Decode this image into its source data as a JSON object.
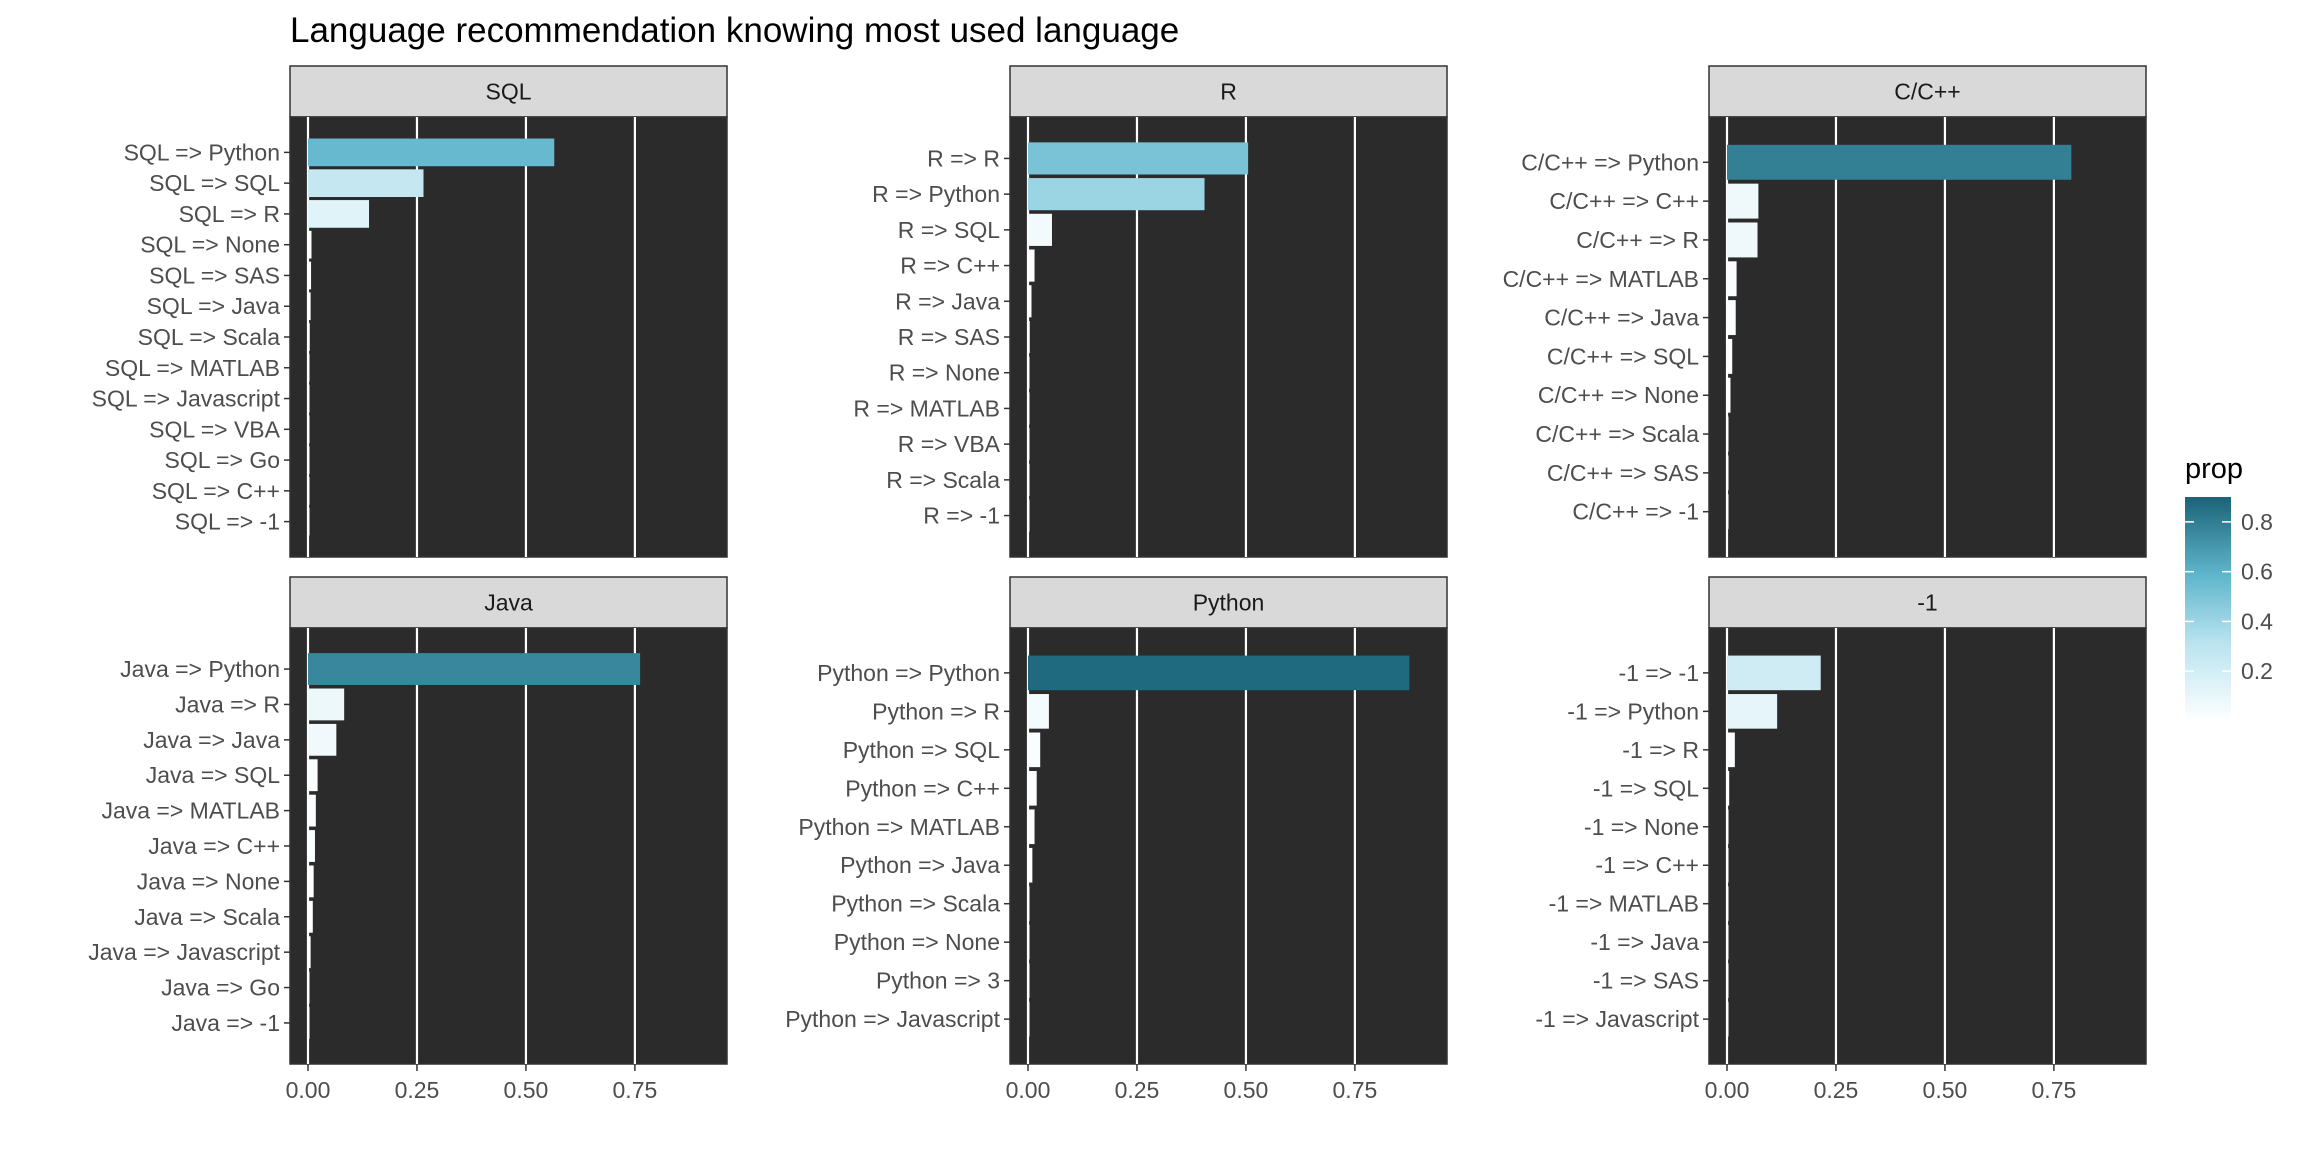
{
  "title": "Language recommendation knowing most used language",
  "legend": {
    "title": "prop",
    "ticks": [
      "0.2",
      "0.4",
      "0.6",
      "0.8"
    ],
    "low_color": "#ffffff",
    "high_color": "#1b6378",
    "range": [
      0.0,
      0.9
    ],
    "placement": "right"
  },
  "chart_data": [
    {
      "type": "bar",
      "orientation": "horizontal",
      "facet": "SQL",
      "categories": [
        "SQL => Python",
        "SQL => SQL",
        "SQL => R",
        "SQL => None",
        "SQL => SAS",
        "SQL => Java",
        "SQL => Scala",
        "SQL => MATLAB",
        "SQL => Javascript",
        "SQL => VBA",
        "SQL => Go",
        "SQL => C++",
        "SQL => -1"
      ],
      "values": [
        0.565,
        0.265,
        0.14,
        0.008,
        0.007,
        0.006,
        0.004,
        0.003,
        0.003,
        0.002,
        0.002,
        0.002,
        0.001
      ],
      "xlim": [
        0,
        0.92
      ],
      "xticks": [
        "0.00",
        "0.25",
        "0.50",
        "0.75"
      ],
      "grid": true
    },
    {
      "type": "bar",
      "orientation": "horizontal",
      "facet": "R",
      "categories": [
        "R => R",
        "R => Python",
        "R => SQL",
        "R => C++",
        "R => Java",
        "R => SAS",
        "R => None",
        "R => MATLAB",
        "R => VBA",
        "R => Scala",
        "R => -1"
      ],
      "values": [
        0.505,
        0.405,
        0.055,
        0.015,
        0.008,
        0.004,
        0.003,
        0.002,
        0.002,
        0.001,
        0.001
      ],
      "xlim": [
        0,
        0.92
      ],
      "xticks": [
        "0.00",
        "0.25",
        "0.50",
        "0.75"
      ],
      "grid": true
    },
    {
      "type": "bar",
      "orientation": "horizontal",
      "facet": "C/C++",
      "categories": [
        "C/C++ => Python",
        "C/C++ => C++",
        "C/C++ => R",
        "C/C++ => MATLAB",
        "C/C++ => Java",
        "C/C++ => SQL",
        "C/C++ => None",
        "C/C++ => Scala",
        "C/C++ => SAS",
        "C/C++ => -1"
      ],
      "values": [
        0.79,
        0.072,
        0.07,
        0.022,
        0.02,
        0.012,
        0.008,
        0.002,
        0.002,
        0.001
      ],
      "xlim": [
        0,
        0.92
      ],
      "xticks": [
        "0.00",
        "0.25",
        "0.50",
        "0.75"
      ],
      "grid": true
    },
    {
      "type": "bar",
      "orientation": "horizontal",
      "facet": "Java",
      "categories": [
        "Java => Python",
        "Java => R",
        "Java => Java",
        "Java => SQL",
        "Java => MATLAB",
        "Java => C++",
        "Java => None",
        "Java => Scala",
        "Java => Javascript",
        "Java => Go",
        "Java => -1"
      ],
      "values": [
        0.762,
        0.083,
        0.065,
        0.022,
        0.018,
        0.016,
        0.013,
        0.011,
        0.006,
        0.002,
        0.001
      ],
      "xlim": [
        0,
        0.92
      ],
      "xticks": [
        "0.00",
        "0.25",
        "0.50",
        "0.75"
      ],
      "grid": true
    },
    {
      "type": "bar",
      "orientation": "horizontal",
      "facet": "Python",
      "categories": [
        "Python => Python",
        "Python => R",
        "Python => SQL",
        "Python => C++",
        "Python => MATLAB",
        "Python => Java",
        "Python => Scala",
        "Python => None",
        "Python => 3",
        "Python => Javascript"
      ],
      "values": [
        0.875,
        0.048,
        0.028,
        0.02,
        0.015,
        0.01,
        0.003,
        0.002,
        0.001,
        0.001
      ],
      "xlim": [
        0,
        0.92
      ],
      "xticks": [
        "0.00",
        "0.25",
        "0.50",
        "0.75"
      ],
      "grid": true
    },
    {
      "type": "bar",
      "orientation": "horizontal",
      "facet": "-1",
      "categories": [
        "-1 => -1",
        "-1 => Python",
        "-1 => R",
        "-1 => SQL",
        "-1 => None",
        "-1 => C++",
        "-1 => MATLAB",
        "-1 => Java",
        "-1 => SAS",
        "-1 => Javascript"
      ],
      "values": [
        0.215,
        0.115,
        0.018,
        0.005,
        0.002,
        0.002,
        0.001,
        0.001,
        0.001,
        0.001
      ],
      "xlim": [
        0,
        0.92
      ],
      "xticks": [
        "0.00",
        "0.25",
        "0.50",
        "0.75"
      ],
      "grid": true
    }
  ]
}
